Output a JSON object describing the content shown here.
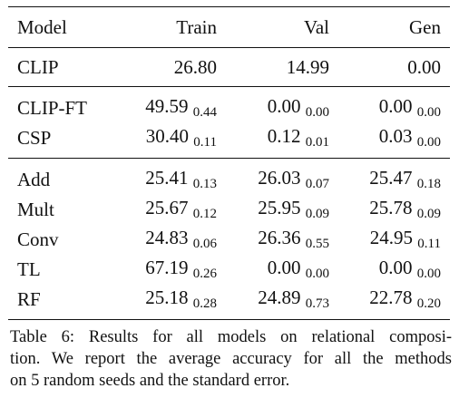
{
  "table": {
    "headers": [
      "Model",
      "Train",
      "Val",
      "Gen"
    ],
    "baseline": {
      "model": "CLIP",
      "train": "26.80",
      "val": "14.99",
      "gen": "0.00"
    },
    "group1": [
      {
        "model": "CLIP-FT",
        "train": {
          "mean": "49.59",
          "se": "0.44"
        },
        "val": {
          "mean": "0.00",
          "se": "0.00"
        },
        "gen": {
          "mean": "0.00",
          "se": "0.00"
        }
      },
      {
        "model": "CSP",
        "train": {
          "mean": "30.40",
          "se": "0.11"
        },
        "val": {
          "mean": "0.12",
          "se": "0.01"
        },
        "gen": {
          "mean": "0.03",
          "se": "0.00"
        }
      }
    ],
    "group2": [
      {
        "model": "Add",
        "train": {
          "mean": "25.41",
          "se": "0.13"
        },
        "val": {
          "mean": "26.03",
          "se": "0.07"
        },
        "gen": {
          "mean": "25.47",
          "se": "0.18"
        }
      },
      {
        "model": "Mult",
        "train": {
          "mean": "25.67",
          "se": "0.12"
        },
        "val": {
          "mean": "25.95",
          "se": "0.09"
        },
        "gen": {
          "mean": "25.78",
          "se": "0.09"
        }
      },
      {
        "model": "Conv",
        "train": {
          "mean": "24.83",
          "se": "0.06"
        },
        "val": {
          "mean": "26.36",
          "se": "0.55"
        },
        "gen": {
          "mean": "24.95",
          "se": "0.11"
        }
      },
      {
        "model": "TL",
        "train": {
          "mean": "67.19",
          "se": "0.26"
        },
        "val": {
          "mean": "0.00",
          "se": "0.00"
        },
        "gen": {
          "mean": "0.00",
          "se": "0.00"
        }
      },
      {
        "model": "RF",
        "train": {
          "mean": "25.18",
          "se": "0.28"
        },
        "val": {
          "mean": "24.89",
          "se": "0.73"
        },
        "gen": {
          "mean": "22.78",
          "se": "0.20"
        }
      }
    ]
  },
  "caption": {
    "lines": [
      "Table 6: Results for all models on relational composi-",
      "tion. We report the average accuracy for all the methods",
      "on 5 random seeds and the standard error."
    ]
  }
}
